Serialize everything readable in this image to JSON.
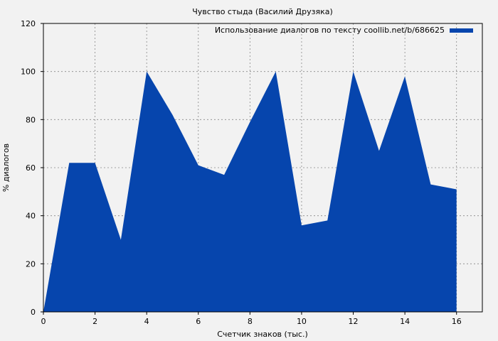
{
  "chart_data": {
    "type": "area",
    "title": "Чувство стыда (Василий Друзяка)",
    "xlabel": "Счетчик знаков (тыс.)",
    "ylabel": "% диалогов",
    "xlim": [
      0,
      17
    ],
    "ylim": [
      0,
      120
    ],
    "x_ticks": [
      0,
      2,
      4,
      6,
      8,
      10,
      12,
      14,
      16
    ],
    "y_ticks": [
      0,
      20,
      40,
      60,
      80,
      100,
      120
    ],
    "grid": true,
    "legend_position": "top-right",
    "series": [
      {
        "name": "Использование диалогов по тексту coollib.net/b/686625",
        "color": "#0645ad",
        "x": [
          0,
          1,
          2,
          3,
          4,
          5,
          6,
          7,
          8,
          9,
          10,
          11,
          12,
          13,
          14,
          15,
          16
        ],
        "values": [
          0,
          62,
          62,
          30,
          100,
          82,
          61,
          57,
          79,
          100,
          36,
          38,
          100,
          67,
          98,
          53,
          51
        ]
      }
    ]
  }
}
